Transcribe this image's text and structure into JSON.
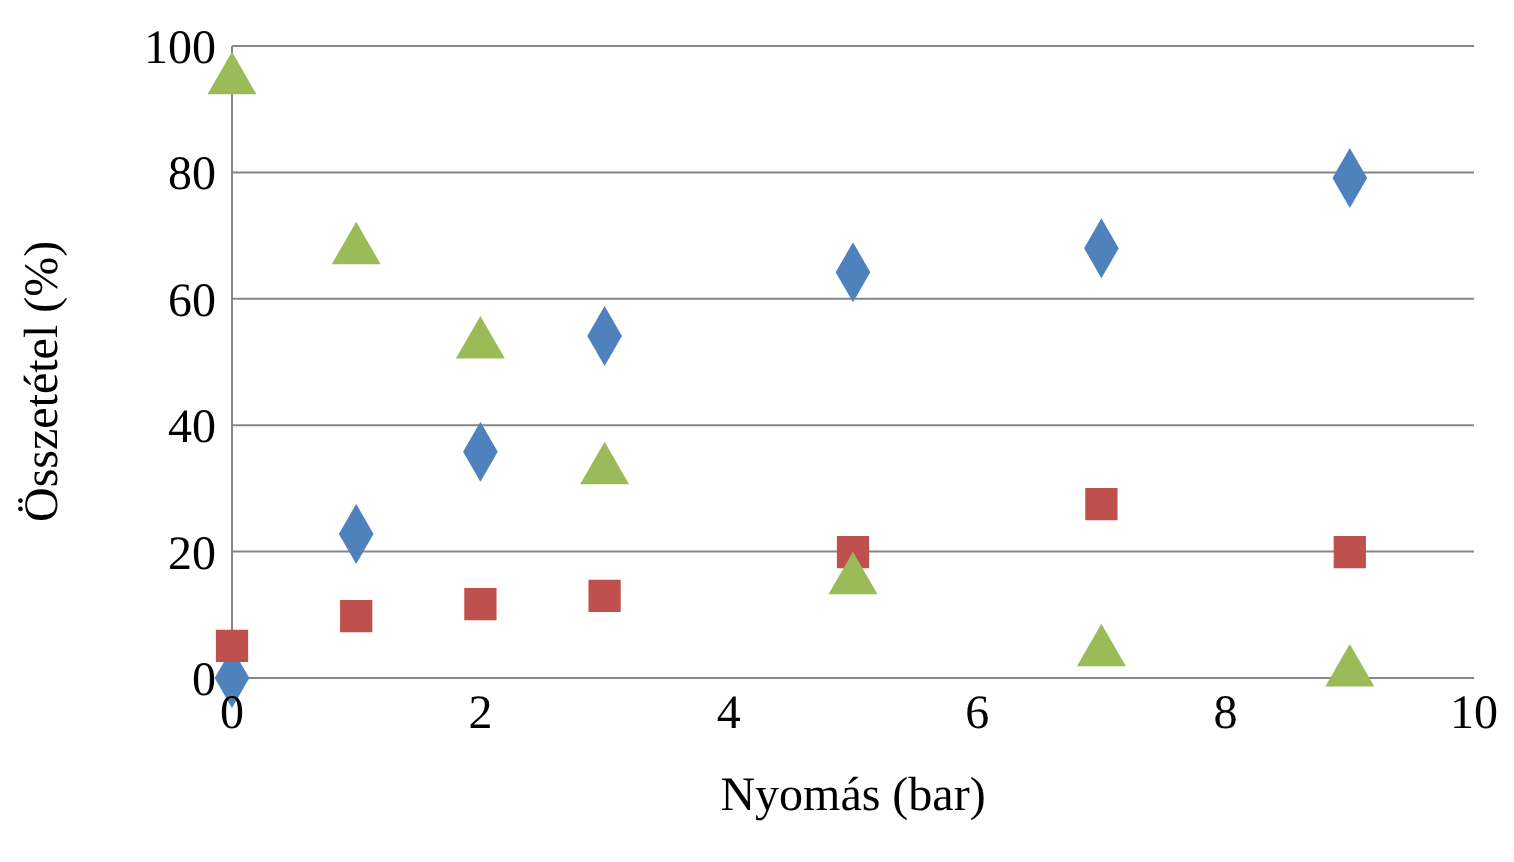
{
  "chart_data": {
    "type": "scatter",
    "xlabel": "Nyomás (bar)",
    "ylabel": "Összetétel (%)",
    "x": [
      0,
      1,
      2,
      3,
      5,
      7,
      9
    ],
    "series": [
      {
        "color": "#4f81bd",
        "marker": "diamond",
        "values": [
          0,
          22.8,
          35.8,
          54.1,
          64.2,
          68,
          79.1
        ]
      },
      {
        "color": "#c0504d",
        "marker": "square",
        "values": [
          5.1,
          9.8,
          11.7,
          13,
          19.9,
          27.5,
          19.9
        ]
      },
      {
        "color": "#9bbb59",
        "marker": "triangle",
        "values": [
          94.6,
          67.7,
          52.8,
          32.9,
          15.5,
          4.1,
          0.9
        ]
      }
    ],
    "xlim": [
      0,
      10
    ],
    "xticks": [
      0,
      2,
      4,
      6,
      8,
      10
    ],
    "ylim": [
      0,
      100
    ],
    "yticks": [
      0,
      20,
      40,
      60,
      80,
      100
    ],
    "grid": "y"
  }
}
